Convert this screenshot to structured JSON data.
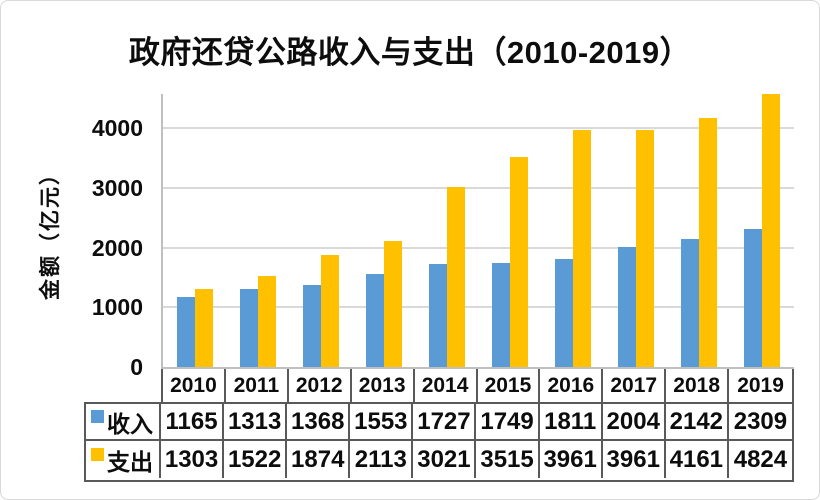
{
  "title": "政府还贷公路收入与支出（2010-2019）",
  "y_axis": {
    "label": "金额（亿元）",
    "tick_labels": [
      "0",
      "1000",
      "2000",
      "3000",
      "4000"
    ]
  },
  "colors": {
    "income_bar": "#5B9BD5",
    "expense_bar": "#FFC000",
    "gridline": "#D9D9D9",
    "axis_line": "#BFBFBF",
    "table_border": "#595959"
  },
  "chart_data": {
    "type": "bar",
    "title": "政府还贷公路收入与支出（2010-2019）",
    "xlabel": "",
    "ylabel": "金额（亿元）",
    "categories": [
      "2010",
      "2011",
      "2012",
      "2013",
      "2014",
      "2015",
      "2016",
      "2017",
      "2018",
      "2019"
    ],
    "series": [
      {
        "name": "收入",
        "color": "#5B9BD5",
        "values": [
          1165,
          1313,
          1368,
          1553,
          1727,
          1749,
          1811,
          2004,
          2142,
          2309
        ]
      },
      {
        "name": "支出",
        "color": "#FFC000",
        "values": [
          1303,
          1522,
          1874,
          2113,
          3021,
          3515,
          3961,
          3961,
          4161,
          4824
        ]
      }
    ],
    "yticks": [
      0,
      1000,
      2000,
      3000,
      4000
    ],
    "ylim": [
      0,
      4570
    ],
    "grid": true,
    "legend_position": "data-table-bottom"
  }
}
